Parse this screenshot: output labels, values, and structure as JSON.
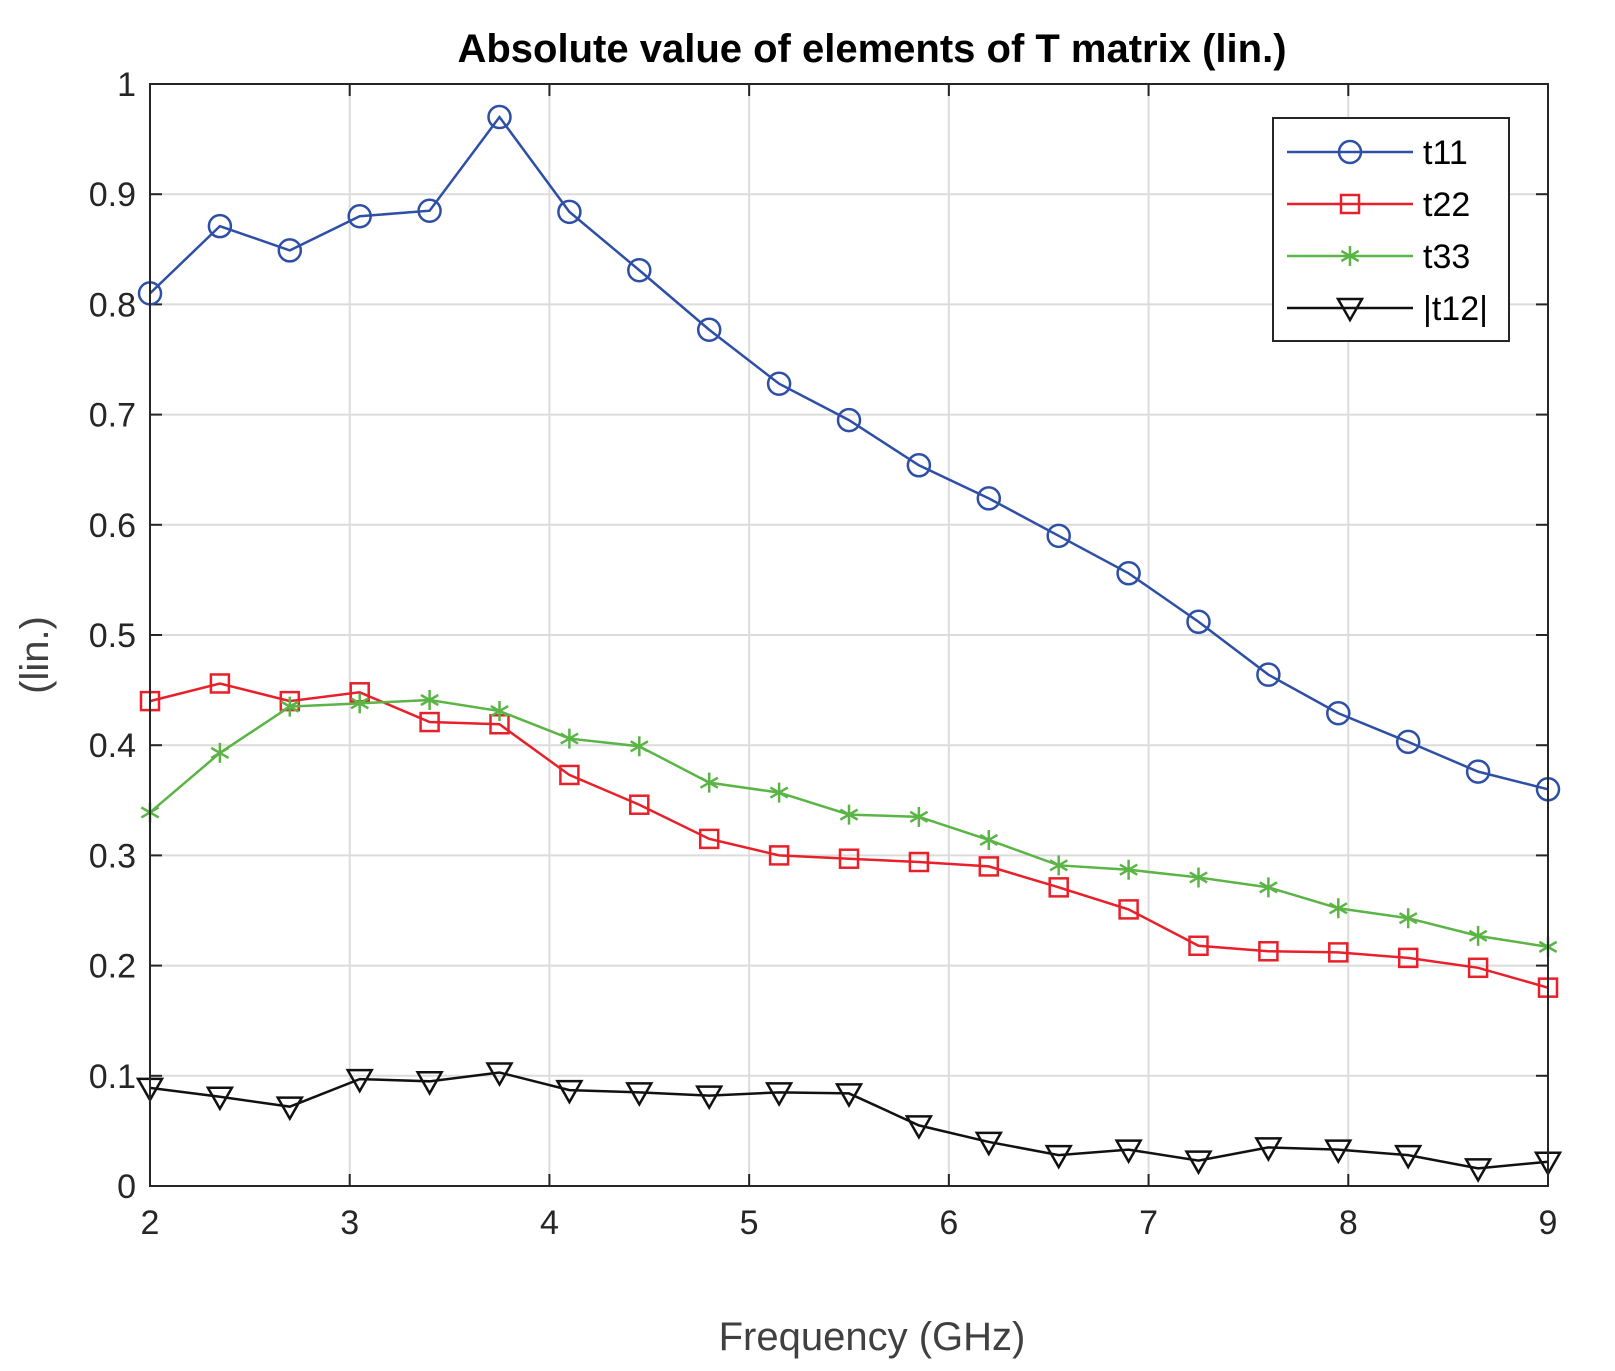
{
  "chart_data": {
    "type": "line",
    "title": "Absolute value of elements of T matrix (lin.)",
    "xlabel": "Frequency (GHz)",
    "ylabel": "(lin.)",
    "xlim": [
      2,
      9
    ],
    "ylim": [
      0,
      1
    ],
    "xticks": [
      "2",
      "3",
      "4",
      "5",
      "6",
      "7",
      "8",
      "9"
    ],
    "yticks": [
      "0",
      "0.1",
      "0.2",
      "0.3",
      "0.4",
      "0.5",
      "0.6",
      "0.7",
      "0.8",
      "0.9",
      "1"
    ],
    "grid": true,
    "legend_position": "top-right",
    "x": [
      2.0,
      2.35,
      2.7,
      3.05,
      3.4,
      3.75,
      4.1,
      4.45,
      4.8,
      5.15,
      5.5,
      5.85,
      6.2,
      6.55,
      6.9,
      7.25,
      7.6,
      7.95,
      8.3,
      8.65,
      9.0
    ],
    "series": [
      {
        "name": "t11",
        "color": "#2e4fa6",
        "marker": "circle",
        "values": [
          0.81,
          0.871,
          0.849,
          0.88,
          0.885,
          0.97,
          0.884,
          0.831,
          0.777,
          0.728,
          0.695,
          0.654,
          0.624,
          0.59,
          0.556,
          0.512,
          0.464,
          0.429,
          0.403,
          0.376,
          0.36
        ]
      },
      {
        "name": "t22",
        "color": "#e8202a",
        "marker": "square",
        "values": [
          0.44,
          0.456,
          0.44,
          0.448,
          0.421,
          0.419,
          0.373,
          0.346,
          0.315,
          0.3,
          0.297,
          0.294,
          0.29,
          0.271,
          0.251,
          0.218,
          0.213,
          0.212,
          0.207,
          0.198,
          0.18
        ]
      },
      {
        "name": "t33",
        "color": "#5ab446",
        "marker": "asterisk",
        "values": [
          0.339,
          0.393,
          0.435,
          0.438,
          0.441,
          0.431,
          0.406,
          0.399,
          0.366,
          0.357,
          0.337,
          0.335,
          0.314,
          0.291,
          0.287,
          0.28,
          0.271,
          0.252,
          0.243,
          0.227,
          0.217
        ]
      },
      {
        "name": "|t12|",
        "color": "#111111",
        "marker": "triangle-down",
        "values": [
          0.089,
          0.081,
          0.072,
          0.097,
          0.095,
          0.103,
          0.087,
          0.085,
          0.082,
          0.085,
          0.084,
          0.055,
          0.04,
          0.028,
          0.033,
          0.023,
          0.035,
          0.033,
          0.028,
          0.016,
          0.022
        ]
      }
    ]
  }
}
